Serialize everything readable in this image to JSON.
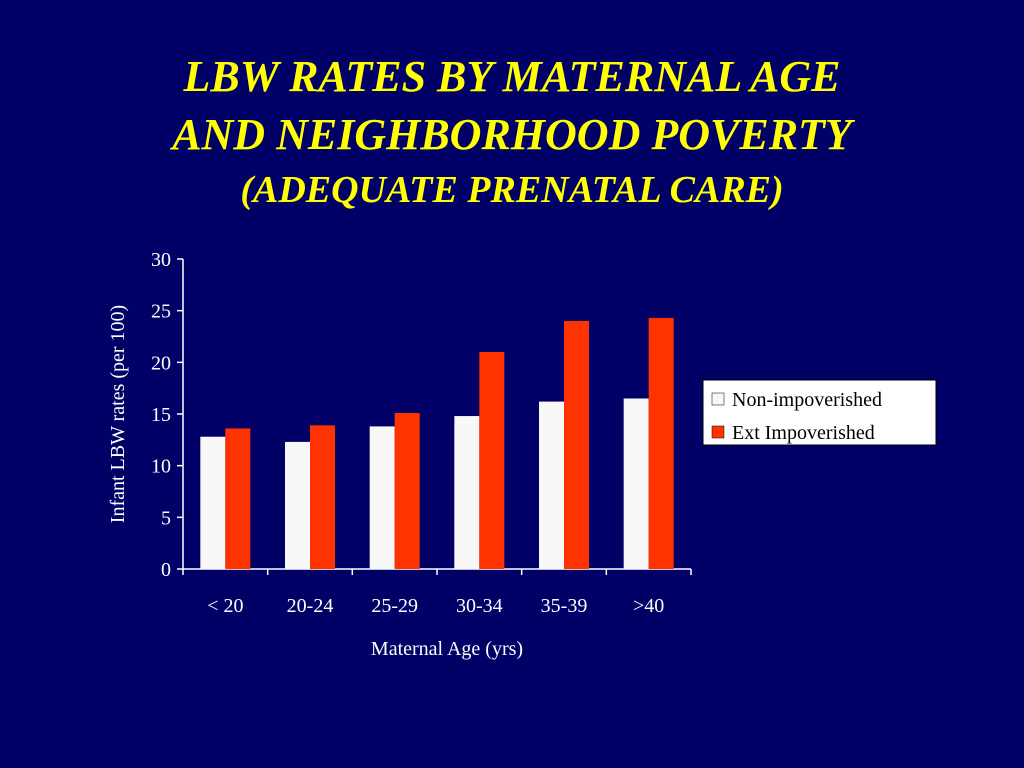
{
  "slide": {
    "title_line1": "LBW RATES BY MATERNAL AGE",
    "title_line2": "AND NEIGHBORHOOD POVERTY",
    "title_line3": "(ADEQUATE PRENATAL CARE)"
  },
  "chart_data": {
    "type": "bar",
    "categories": [
      "< 20",
      "20-24",
      "25-29",
      "30-34",
      "35-39",
      ">40"
    ],
    "series": [
      {
        "name": "Non-impoverished",
        "color": "#f8f8f8",
        "values": [
          12.8,
          12.3,
          13.8,
          14.8,
          16.2,
          16.5
        ]
      },
      {
        "name": "Ext Impoverished",
        "color": "#ff3300",
        "values": [
          13.6,
          13.9,
          15.1,
          21.0,
          24.0,
          24.3
        ]
      }
    ],
    "xlabel": "Maternal Age (yrs)",
    "ylabel": "Infant LBW rates (per 100)",
    "ylim": [
      0,
      30
    ],
    "yticks": [
      0,
      5,
      10,
      15,
      20,
      25,
      30
    ],
    "grid": false,
    "legend_position": "right"
  }
}
